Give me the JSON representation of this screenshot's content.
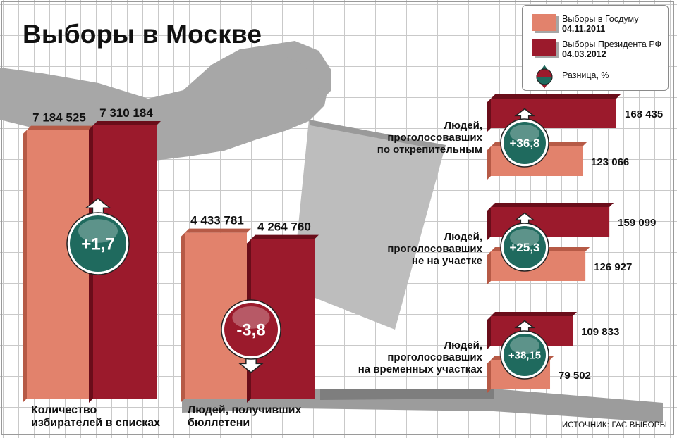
{
  "title": "Выборы в Москве",
  "source": "ИСТОЧНИК: ГАС ВЫБОРЫ",
  "legend": {
    "duma_label": "Выборы в Госдуму",
    "duma_date": "04.11.2011",
    "pres_label": "Выборы Президента РФ",
    "pres_date": "04.03.2012",
    "diff_label": "Разница, %"
  },
  "colors": {
    "duma": "#e2826c",
    "duma_dark": "#b65a46",
    "pres": "#9b1a2c",
    "pres_dark": "#6a0d1a",
    "badge_up": "#1f6a5e",
    "badge_down": "#9b1a2c"
  },
  "chart_data": [
    {
      "type": "bar",
      "categories": [
        "Количество избирателей в списках",
        "Людей, получивших бюллетени"
      ],
      "series": [
        {
          "name": "Выборы в Госдуму 04.11.2011",
          "values": [
            7184525,
            4433781
          ],
          "labels": [
            "7 184 525",
            "4 433 781"
          ]
        },
        {
          "name": "Выборы Президента РФ 04.03.2012",
          "values": [
            7310184,
            4264760
          ],
          "labels": [
            "7 310 184",
            "4 264 760"
          ]
        }
      ],
      "diff": [
        {
          "value": 1.7,
          "label": "+1,7",
          "direction": "up"
        },
        {
          "value": -3.8,
          "label": "-3,8",
          "direction": "down"
        }
      ]
    },
    {
      "type": "bar",
      "orientation": "horizontal",
      "categories": [
        "Людей, проголосовавших по открепительным",
        "Людей, проголосовавших не на участке",
        "Людей, проголосовавших на временных участках"
      ],
      "series": [
        {
          "name": "Выборы в Госдуму 04.11.2011",
          "values": [
            123066,
            126927,
            79502
          ],
          "labels": [
            "123 066",
            "126 927",
            "79 502"
          ]
        },
        {
          "name": "Выборы Президента РФ 04.03.2012",
          "values": [
            168435,
            159099,
            109833
          ],
          "labels": [
            "168 435",
            "159 099",
            "109 833"
          ]
        }
      ],
      "diff": [
        {
          "value": 36.8,
          "label": "+36,8",
          "direction": "up"
        },
        {
          "value": 25.3,
          "label": "+25,3",
          "direction": "up"
        },
        {
          "value": 38.15,
          "label": "+38,15",
          "direction": "up"
        }
      ]
    }
  ],
  "labels": {
    "cat1_line1": "Количество",
    "cat1_line2": "избирателей в списках",
    "cat2_line1": "Людей, получивших",
    "cat2_line2": "бюллетени",
    "r1_line1": "Людей,",
    "r1_line2": "проголосовавших",
    "r1_line3": "по открепительным",
    "r2_line1": "Людей,",
    "r2_line2": "проголосовавших",
    "r2_line3": "не на участке",
    "r3_line1": "Людей,",
    "r3_line2": "проголосовавших",
    "r3_line3": "на временных участках"
  }
}
